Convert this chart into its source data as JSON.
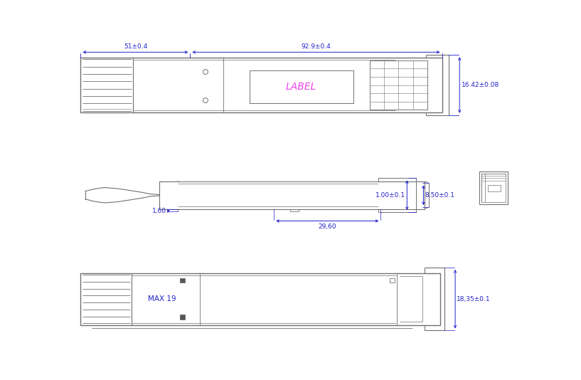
{
  "bg_color": "#ffffff",
  "dim_color": "#2222cc",
  "label_color": "#ee44ee",
  "gc": "#707070",
  "gc_dark": "#404040",
  "view1": {
    "dim_51_text": "51±0.4",
    "dim_92_text": "92.9±0.4",
    "dim_16_text": "16.42±0.08",
    "label_text": "LABEL"
  },
  "view2": {
    "dim_160_text": "1,60",
    "dim_2960_text": "29,60",
    "dim_100_text": "1.00±0.1",
    "dim_850_text": "8.50±0.1"
  },
  "view3": {
    "dim_max19_text": "MAX 19",
    "dim_1835_text": "18,35±0.1"
  }
}
